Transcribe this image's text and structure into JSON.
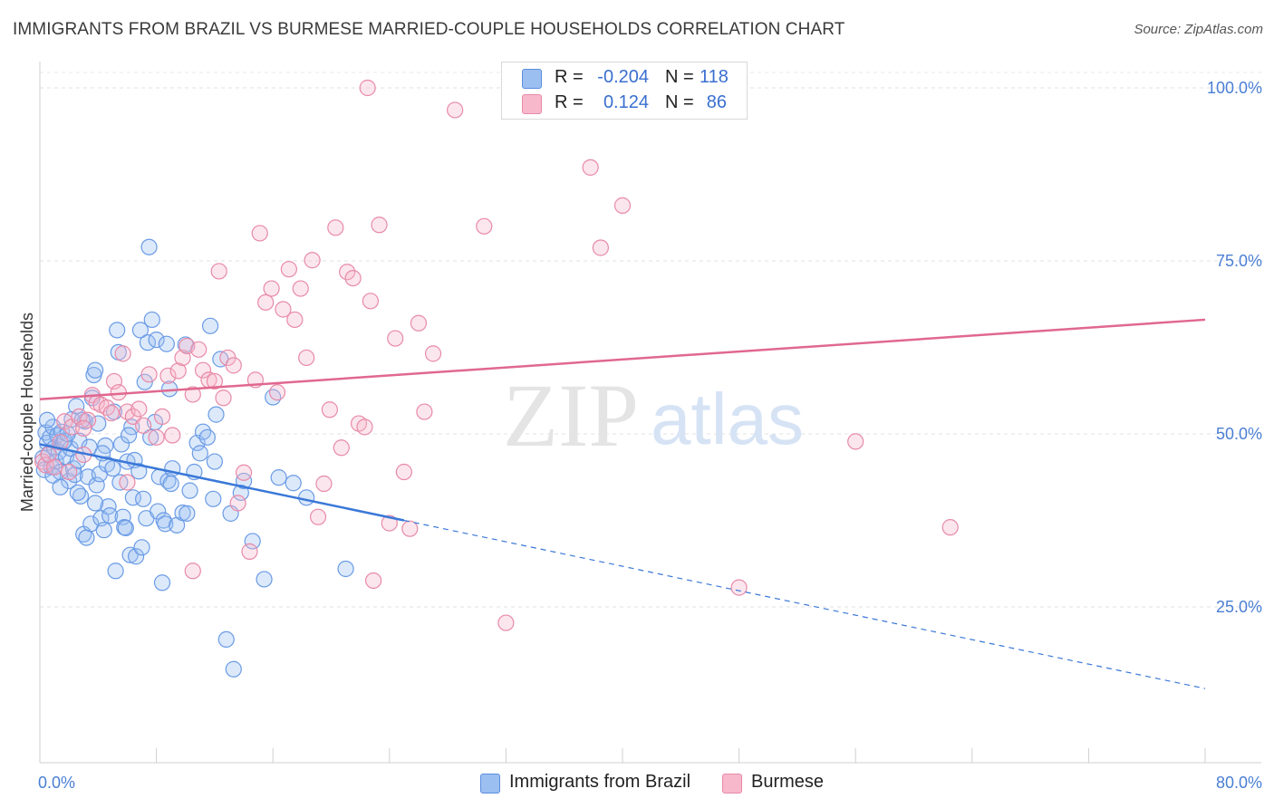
{
  "header": {
    "title": "IMMIGRANTS FROM BRAZIL VS BURMESE MARRIED-COUPLE HOUSEHOLDS CORRELATION CHART",
    "source": "Source: ZipAtlas.com"
  },
  "watermark": {
    "zip": "ZIP",
    "atlas": "atlas"
  },
  "legend": {
    "rows": [
      {
        "r_label": "R =",
        "r_value": "-0.204",
        "n_label": "N =",
        "n_value": "118",
        "color": "#9bbff0",
        "border": "#5a8ee0"
      },
      {
        "r_label": "R =",
        "r_value": "0.124",
        "n_label": "N =",
        "n_value": "86",
        "color": "#f7b8cc",
        "border": "#e88aa8"
      }
    ]
  },
  "bottom_legend": [
    {
      "label": "Immigrants from Brazil",
      "color": "#9bbff0",
      "border": "#5a8ee0"
    },
    {
      "label": "Burmese",
      "color": "#f7b8cc",
      "border": "#e88aa8"
    }
  ],
  "chart_data": {
    "type": "scatter",
    "title": "IMMIGRANTS FROM BRAZIL VS BURMESE MARRIED-COUPLE HOUSEHOLDS CORRELATION CHART",
    "xlabel": "",
    "ylabel": "Married-couple Households",
    "xlim": [
      0,
      80
    ],
    "ylim": [
      6,
      104
    ],
    "x_tick_labels": [
      "0.0%",
      "80.0%"
    ],
    "y_ticks": [
      25,
      50,
      75,
      100
    ],
    "y_tick_labels": [
      "25.0%",
      "50.0%",
      "75.0%",
      "100.0%"
    ],
    "grid": "horizontal-dashed",
    "series": [
      {
        "name": "Immigrants from Brazil",
        "color": "#6a9be6",
        "fill": "rgba(155,191,240,0.35)",
        "trend": {
          "x0": 0,
          "y0": 48.5,
          "x1": 25,
          "y1": 37.5,
          "x_dash_end": 80,
          "y_dash_end": 13.2,
          "color": "#3a78d8"
        },
        "points": [
          [
            0.2,
            46.5
          ],
          [
            0.3,
            44.8
          ],
          [
            0.4,
            50.2
          ],
          [
            0.5,
            48.7
          ],
          [
            0.6,
            47.1
          ],
          [
            0.7,
            49.5
          ],
          [
            0.8,
            45.2
          ],
          [
            0.9,
            51.0
          ],
          [
            1.0,
            48.0
          ],
          [
            1.1,
            46.0
          ],
          [
            1.2,
            49.8
          ],
          [
            1.3,
            47.4
          ],
          [
            1.4,
            44.5
          ],
          [
            1.5,
            50.3
          ],
          [
            1.6,
            48.8
          ],
          [
            1.8,
            46.7
          ],
          [
            2.0,
            43.2
          ],
          [
            2.1,
            47.9
          ],
          [
            2.2,
            52.1
          ],
          [
            2.3,
            45.0
          ],
          [
            2.4,
            44.1
          ],
          [
            2.5,
            54.0
          ],
          [
            2.6,
            46.1
          ],
          [
            2.7,
            49.0
          ],
          [
            2.8,
            41.0
          ],
          [
            3.0,
            35.5
          ],
          [
            3.1,
            51.8
          ],
          [
            3.2,
            35.0
          ],
          [
            3.3,
            43.8
          ],
          [
            3.4,
            48.1
          ],
          [
            3.5,
            37.0
          ],
          [
            3.6,
            55.2
          ],
          [
            3.7,
            58.5
          ],
          [
            3.8,
            59.2
          ],
          [
            3.9,
            42.6
          ],
          [
            4.0,
            51.5
          ],
          [
            4.1,
            44.2
          ],
          [
            4.2,
            37.8
          ],
          [
            4.4,
            36.1
          ],
          [
            4.5,
            48.3
          ],
          [
            4.6,
            45.6
          ],
          [
            4.7,
            39.5
          ],
          [
            4.8,
            38.2
          ],
          [
            5.0,
            45.0
          ],
          [
            5.1,
            53.2
          ],
          [
            5.2,
            30.2
          ],
          [
            5.3,
            65.0
          ],
          [
            5.4,
            61.8
          ],
          [
            5.5,
            43.0
          ],
          [
            5.6,
            48.5
          ],
          [
            5.7,
            38.0
          ],
          [
            5.8,
            36.5
          ],
          [
            5.9,
            36.4
          ],
          [
            6.0,
            46.0
          ],
          [
            6.2,
            32.5
          ],
          [
            6.3,
            51.0
          ],
          [
            6.4,
            40.8
          ],
          [
            6.5,
            46.2
          ],
          [
            6.6,
            32.3
          ],
          [
            6.8,
            44.6
          ],
          [
            6.9,
            65.0
          ],
          [
            7.0,
            33.6
          ],
          [
            7.1,
            40.6
          ],
          [
            7.2,
            57.5
          ],
          [
            7.3,
            37.8
          ],
          [
            7.4,
            63.2
          ],
          [
            7.5,
            77.0
          ],
          [
            7.6,
            49.5
          ],
          [
            7.7,
            66.5
          ],
          [
            7.9,
            51.7
          ],
          [
            8.0,
            63.6
          ],
          [
            8.1,
            38.8
          ],
          [
            8.2,
            43.8
          ],
          [
            8.4,
            28.5
          ],
          [
            8.5,
            37.5
          ],
          [
            8.6,
            37.0
          ],
          [
            8.7,
            63.0
          ],
          [
            8.8,
            43.2
          ],
          [
            9.0,
            42.8
          ],
          [
            9.1,
            45.0
          ],
          [
            9.4,
            36.8
          ],
          [
            9.8,
            38.6
          ],
          [
            10.0,
            62.9
          ],
          [
            10.1,
            38.5
          ],
          [
            10.3,
            41.8
          ],
          [
            10.8,
            48.7
          ],
          [
            11.0,
            47.2
          ],
          [
            11.2,
            50.3
          ],
          [
            11.5,
            49.5
          ],
          [
            11.7,
            65.6
          ],
          [
            11.9,
            40.6
          ],
          [
            12.1,
            52.8
          ],
          [
            12.4,
            60.8
          ],
          [
            12.8,
            20.3
          ],
          [
            13.1,
            38.5
          ],
          [
            13.3,
            16.0
          ],
          [
            13.8,
            41.5
          ],
          [
            14.6,
            34.5
          ],
          [
            15.4,
            29.0
          ],
          [
            16.0,
            55.3
          ],
          [
            16.4,
            43.7
          ],
          [
            17.4,
            42.9
          ],
          [
            18.3,
            40.8
          ],
          [
            21.0,
            30.5
          ],
          [
            1.7,
            49.0
          ],
          [
            2.9,
            52.0
          ],
          [
            3.8,
            40.0
          ],
          [
            0.9,
            44.0
          ],
          [
            1.9,
            50.0
          ],
          [
            2.6,
            41.5
          ],
          [
            4.3,
            47.2
          ],
          [
            6.1,
            49.8
          ],
          [
            8.9,
            56.5
          ],
          [
            10.6,
            44.5
          ],
          [
            12.0,
            46.0
          ],
          [
            14.0,
            43.2
          ],
          [
            0.5,
            52.0
          ],
          [
            1.4,
            42.3
          ]
        ]
      },
      {
        "name": "Burmese",
        "color": "#e88aa8",
        "fill": "rgba(247,184,204,0.35)",
        "trend": {
          "x0": 0,
          "y0": 55.0,
          "x1": 80,
          "y1": 66.5,
          "color": "#e0688f"
        },
        "points": [
          [
            0.2,
            46.0
          ],
          [
            0.4,
            45.5
          ],
          [
            0.6,
            47.0
          ],
          [
            1.0,
            45.2
          ],
          [
            1.4,
            48.8
          ],
          [
            1.7,
            51.8
          ],
          [
            2.0,
            44.5
          ],
          [
            2.2,
            51.0
          ],
          [
            2.7,
            52.5
          ],
          [
            3.0,
            47.0
          ],
          [
            3.3,
            52.0
          ],
          [
            3.6,
            55.6
          ],
          [
            3.9,
            54.5
          ],
          [
            4.2,
            54.2
          ],
          [
            4.6,
            53.8
          ],
          [
            4.9,
            53.0
          ],
          [
            5.1,
            57.6
          ],
          [
            5.4,
            56.0
          ],
          [
            5.7,
            61.6
          ],
          [
            6.0,
            53.2
          ],
          [
            6.4,
            52.5
          ],
          [
            6.8,
            53.6
          ],
          [
            7.1,
            51.2
          ],
          [
            7.5,
            58.6
          ],
          [
            8.0,
            49.5
          ],
          [
            8.4,
            52.5
          ],
          [
            8.8,
            58.4
          ],
          [
            9.1,
            49.8
          ],
          [
            9.5,
            59.1
          ],
          [
            9.8,
            61.0
          ],
          [
            10.1,
            62.7
          ],
          [
            10.5,
            55.7
          ],
          [
            10.9,
            62.2
          ],
          [
            11.2,
            59.2
          ],
          [
            11.6,
            57.8
          ],
          [
            12.0,
            57.6
          ],
          [
            12.3,
            73.5
          ],
          [
            12.6,
            55.2
          ],
          [
            12.9,
            61.0
          ],
          [
            13.3,
            59.9
          ],
          [
            13.6,
            40.0
          ],
          [
            14.0,
            44.4
          ],
          [
            14.4,
            33.0
          ],
          [
            14.8,
            57.8
          ],
          [
            15.1,
            79.0
          ],
          [
            15.5,
            69.0
          ],
          [
            15.9,
            71.0
          ],
          [
            16.3,
            56.0
          ],
          [
            16.7,
            68.0
          ],
          [
            17.1,
            73.8
          ],
          [
            17.5,
            66.5
          ],
          [
            17.9,
            71.0
          ],
          [
            18.3,
            61.0
          ],
          [
            18.7,
            75.1
          ],
          [
            19.1,
            38.0
          ],
          [
            19.5,
            42.8
          ],
          [
            19.9,
            53.5
          ],
          [
            20.3,
            79.8
          ],
          [
            20.7,
            48.0
          ],
          [
            21.1,
            73.4
          ],
          [
            21.5,
            72.5
          ],
          [
            21.9,
            51.5
          ],
          [
            22.3,
            51.0
          ],
          [
            22.7,
            69.2
          ],
          [
            22.9,
            28.8
          ],
          [
            23.3,
            80.2
          ],
          [
            24.0,
            37.1
          ],
          [
            24.4,
            63.8
          ],
          [
            25.0,
            44.5
          ],
          [
            25.4,
            36.3
          ],
          [
            26.0,
            66.0
          ],
          [
            26.4,
            53.2
          ],
          [
            27.0,
            61.6
          ],
          [
            28.5,
            96.8
          ],
          [
            30.5,
            80.0
          ],
          [
            32.0,
            22.7
          ],
          [
            37.8,
            88.5
          ],
          [
            38.5,
            76.9
          ],
          [
            40.0,
            83.0
          ],
          [
            48.0,
            27.8
          ],
          [
            56.0,
            48.9
          ],
          [
            62.5,
            36.5
          ],
          [
            22.5,
            100.0
          ],
          [
            10.5,
            30.2
          ],
          [
            3.0,
            50.8
          ],
          [
            6.0,
            43.0
          ]
        ]
      }
    ]
  }
}
